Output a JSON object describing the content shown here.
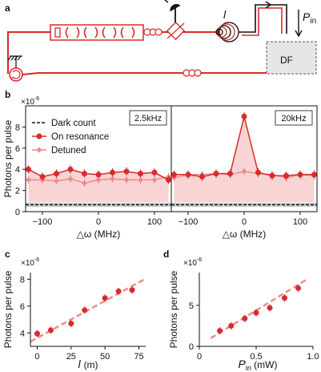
{
  "colors": {
    "red": "#d92b2b",
    "light_red": "#f08a8a",
    "fill": "#f7cccc",
    "gray": "#aaaaaa",
    "black": "#111111",
    "df_box": "#e6e6e6"
  },
  "schematic": {
    "panel_label": "a",
    "l_label": "l",
    "pin_label": "P",
    "pin_sub": "in",
    "df_label": "DF",
    "icons": [
      "detector-icon",
      "ground-icon",
      "circulator-icon",
      "fiber-coil-icon",
      "spiral-icon"
    ]
  },
  "chart_data": [
    {
      "panel": "b",
      "title": "2.5kHz",
      "type": "line",
      "xlabel": "△ω (MHz)",
      "ylabel": "Photons per pulse",
      "multiplier": "×10",
      "multiplier_exp": "-6",
      "xlim": [
        -130,
        130
      ],
      "ylim": [
        0,
        10
      ],
      "xticks": [
        -100,
        0,
        100
      ],
      "yticks": [
        0,
        2,
        4,
        6,
        8
      ],
      "legend": [
        "Dark count",
        "On resonance",
        "Detuned"
      ],
      "legend_position": "top-left",
      "dark_count": 0.65,
      "series": [
        {
          "name": "On resonance",
          "x": [
            -125,
            -100,
            -75,
            -50,
            -25,
            0,
            25,
            50,
            75,
            100,
            125
          ],
          "y": [
            4.0,
            3.3,
            3.6,
            4.0,
            3.6,
            3.5,
            3.7,
            3.8,
            3.6,
            3.7,
            3.0
          ]
        },
        {
          "name": "Detuned",
          "x": [
            -125,
            -100,
            -75,
            -50,
            -25,
            0,
            25,
            50,
            75,
            100,
            125
          ],
          "y": [
            3.0,
            3.0,
            2.9,
            3.1,
            2.7,
            3.0,
            3.1,
            3.0,
            3.0,
            3.0,
            3.3
          ]
        }
      ]
    },
    {
      "panel": "b",
      "title": "20kHz",
      "type": "line",
      "xlabel": "△ω (MHz)",
      "xlim": [
        -130,
        130
      ],
      "ylim": [
        0,
        10
      ],
      "xticks": [
        -100,
        0,
        100
      ],
      "dark_count": 0.65,
      "series": [
        {
          "name": "On resonance",
          "x": [
            -125,
            -100,
            -75,
            -50,
            -25,
            0,
            25,
            50,
            75,
            100,
            125
          ],
          "y": [
            3.5,
            3.5,
            3.3,
            3.6,
            3.6,
            9.0,
            3.7,
            3.4,
            3.4,
            3.5,
            3.5
          ]
        },
        {
          "name": "Detuned",
          "x": [
            -125,
            -100,
            -75,
            -50,
            -25,
            0,
            25,
            50,
            75,
            100,
            125
          ],
          "y": [
            3.2,
            3.5,
            3.5,
            3.6,
            3.5,
            3.8,
            3.6,
            3.5,
            3.2,
            3.5,
            3.4
          ]
        }
      ]
    },
    {
      "panel": "c",
      "type": "scatter",
      "xlabel": "l",
      "xunit": "(m)",
      "ylabel": "Photons per pulse",
      "multiplier": "×10",
      "multiplier_exp": "-6",
      "xlim": [
        -5,
        80
      ],
      "ylim": [
        3,
        8.5
      ],
      "xticks": [
        0,
        25,
        50,
        75
      ],
      "yticks": [
        4,
        6,
        8
      ],
      "x": [
        0,
        10,
        25,
        35,
        50,
        60,
        70
      ],
      "y": [
        3.95,
        4.2,
        4.7,
        5.7,
        6.6,
        7.1,
        7.2
      ],
      "fit": [
        [
          -5,
          3.35
        ],
        [
          80,
          8.05
        ]
      ]
    },
    {
      "panel": "d",
      "type": "scatter",
      "xlabel": "P",
      "xsub": "in",
      "xunit": " (mW)",
      "ylabel": "Photons per pulse",
      "multiplier": "×10",
      "multiplier_exp": "-6",
      "xlim": [
        0,
        1.0
      ],
      "ylim": [
        0,
        9
      ],
      "xticks": [
        0,
        0.5,
        1.0
      ],
      "yticks": [
        0,
        5
      ],
      "x": [
        0.18,
        0.28,
        0.4,
        0.5,
        0.62,
        0.75,
        0.87
      ],
      "y": [
        1.9,
        2.5,
        3.4,
        4.1,
        4.7,
        5.9,
        7.1
      ],
      "fit": [
        [
          0.1,
          1.0
        ],
        [
          0.95,
          8.2
        ]
      ]
    }
  ]
}
